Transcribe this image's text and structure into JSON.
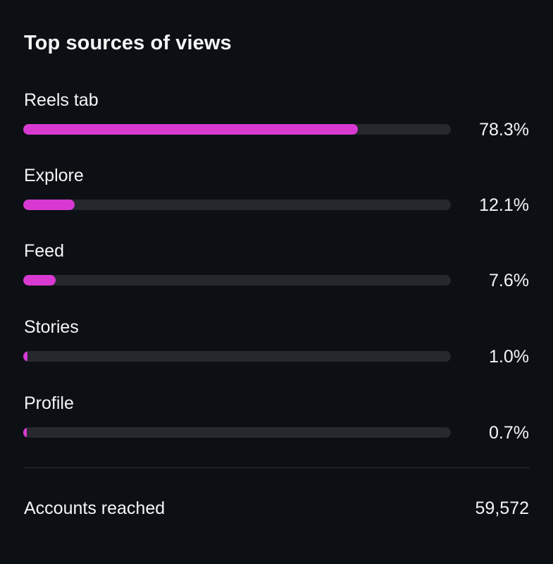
{
  "title": "Top sources of views",
  "accent_color": "#d83ad1",
  "sources": [
    {
      "label": "Reels tab",
      "percent_text": "78.3%",
      "value": 78.3
    },
    {
      "label": "Explore",
      "percent_text": "12.1%",
      "value": 12.1
    },
    {
      "label": "Feed",
      "percent_text": "7.6%",
      "value": 7.6
    },
    {
      "label": "Stories",
      "percent_text": "1.0%",
      "value": 1.0
    },
    {
      "label": "Profile",
      "percent_text": "0.7%",
      "value": 0.7
    }
  ],
  "footer": {
    "label": "Accounts reached",
    "value": "59,572"
  }
}
